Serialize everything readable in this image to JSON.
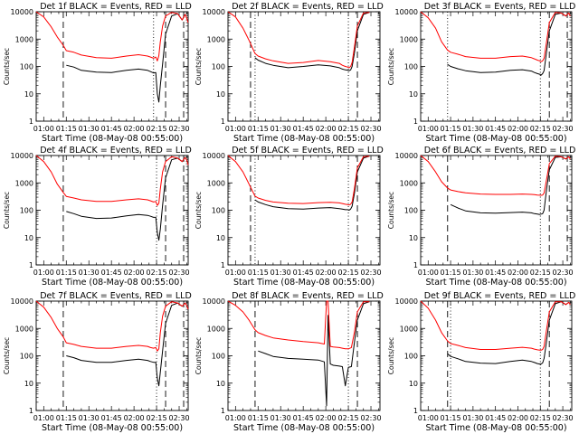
{
  "figure": {
    "xlabel": "Start Time (08-May-08 00:55:00)",
    "ylabel": "Counts/sec",
    "x_tick_labels": [
      "01:00",
      "01:15",
      "01:30",
      "01:45",
      "02:00",
      "02:15",
      "02:30"
    ],
    "y_tick_labels": [
      "1",
      "10",
      "100",
      "1000",
      "10000"
    ],
    "colors": {
      "events": "#000000",
      "lld": "#ff0000"
    }
  },
  "chart_data": [
    {
      "type": "line",
      "title": "Det 1f BLACK = Events, RED = LLD",
      "xlabel": "Start Time (08-May-08 00:55:00)",
      "ylabel": "Counts/sec",
      "y_scale": "log",
      "ylim": [
        1,
        10000
      ],
      "xlim_min": [
        0,
        101
      ],
      "dashed_lines_min": [
        18,
        86,
        98
      ],
      "dotted_lines_min": [
        78
      ],
      "x_min": [
        0,
        5,
        10,
        14,
        17.9,
        20,
        25,
        30,
        40,
        50,
        60,
        68,
        74,
        76,
        78,
        79.5,
        80.5,
        81.5,
        82.5,
        84,
        86,
        90,
        94,
        97,
        99,
        100,
        101
      ],
      "series": [
        {
          "name": "Events",
          "values": [
            null,
            null,
            null,
            null,
            null,
            110,
            95,
            72,
            62,
            60,
            72,
            80,
            72,
            65,
            58,
            60,
            10,
            5,
            20,
            120,
            1500,
            7000,
            8500,
            5000,
            8000,
            null,
            null
          ]
        },
        {
          "name": "LLD",
          "values": [
            10000,
            6500,
            2800,
            1200,
            600,
            380,
            330,
            260,
            210,
            200,
            240,
            270,
            240,
            220,
            200,
            220,
            160,
            250,
            800,
            3000,
            7000,
            9500,
            8500,
            5000,
            8000,
            6000,
            4000
          ]
        }
      ]
    },
    {
      "type": "line",
      "title": "Det 2f BLACK = Events, RED = LLD",
      "xlabel": "Start Time (08-May-08 00:55:00)",
      "ylabel": "Counts/sec",
      "y_scale": "log",
      "ylim": [
        1,
        10000
      ],
      "xlim_min": [
        0,
        101
      ],
      "dashed_lines_min": [
        15,
        86
      ],
      "dotted_lines_min": [
        18,
        80
      ],
      "x_min": [
        0,
        5,
        10,
        14,
        17.9,
        20,
        25,
        30,
        40,
        50,
        60,
        68,
        74,
        76,
        78,
        79.5,
        80.5,
        81.5,
        82.5,
        84,
        86,
        90,
        94,
        97,
        99,
        100,
        101
      ],
      "series": [
        {
          "name": "Events",
          "values": [
            null,
            null,
            null,
            null,
            210,
            170,
            130,
            110,
            90,
            100,
            115,
            105,
            90,
            80,
            75,
            73,
            70,
            75,
            100,
            300,
            2000,
            8000,
            9500,
            null,
            null,
            null,
            null
          ]
        },
        {
          "name": "LLD",
          "values": [
            10000,
            6500,
            2500,
            900,
            300,
            240,
            190,
            160,
            130,
            140,
            165,
            150,
            130,
            110,
            100,
            95,
            90,
            100,
            140,
            500,
            3000,
            9000,
            9500,
            null,
            null,
            null,
            null
          ]
        }
      ]
    },
    {
      "type": "line",
      "title": "Det 3f BLACK = Events, RED = LLD",
      "xlabel": "Start Time (08-May-08 00:55:00)",
      "ylabel": "Counts/sec",
      "y_scale": "log",
      "ylim": [
        1,
        10000
      ],
      "xlim_min": [
        0,
        101
      ],
      "dashed_lines_min": [
        86,
        98
      ],
      "dotted_lines_min": [
        18,
        80
      ],
      "x_min": [
        0,
        5,
        10,
        14,
        17.9,
        20,
        25,
        30,
        40,
        50,
        60,
        68,
        74,
        76,
        78,
        79.5,
        80.5,
        81.5,
        82.5,
        84,
        86,
        90,
        94,
        97,
        99,
        100,
        101
      ],
      "series": [
        {
          "name": "Events",
          "values": [
            null,
            null,
            null,
            null,
            120,
            100,
            82,
            70,
            60,
            62,
            72,
            76,
            68,
            60,
            55,
            52,
            48,
            55,
            70,
            300,
            2000,
            8000,
            9000,
            7000,
            9000,
            null,
            null
          ]
        },
        {
          "name": "LLD",
          "values": [
            10000,
            6000,
            2500,
            800,
            400,
            330,
            280,
            230,
            200,
            200,
            230,
            240,
            210,
            190,
            170,
            160,
            150,
            160,
            200,
            700,
            4000,
            9500,
            9000,
            7000,
            9000,
            7000,
            null
          ]
        }
      ]
    },
    {
      "type": "line",
      "title": "Det 4f BLACK = Events, RED = LLD",
      "xlabel": "Start Time (08-May-08 00:55:00)",
      "ylabel": "Counts/sec",
      "y_scale": "log",
      "ylim": [
        1,
        10000
      ],
      "xlim_min": [
        0,
        101
      ],
      "dashed_lines_min": [
        18,
        86,
        98
      ],
      "dotted_lines_min": [
        80
      ],
      "x_min": [
        0,
        5,
        10,
        14,
        17.9,
        20,
        25,
        30,
        40,
        50,
        60,
        68,
        74,
        76,
        78,
        79.5,
        80.5,
        81.5,
        82.5,
        84,
        86,
        90,
        94,
        97,
        99,
        100,
        101
      ],
      "series": [
        {
          "name": "Events",
          "values": [
            null,
            null,
            null,
            null,
            null,
            90,
            75,
            60,
            50,
            52,
            62,
            70,
            65,
            60,
            55,
            55,
            15,
            8,
            20,
            150,
            1500,
            7000,
            8000,
            6000,
            8500,
            null,
            null
          ]
        },
        {
          "name": "LLD",
          "values": [
            10000,
            6000,
            2500,
            900,
            450,
            320,
            280,
            240,
            210,
            210,
            240,
            260,
            240,
            220,
            200,
            210,
            150,
            180,
            600,
            2500,
            6000,
            9000,
            8000,
            6000,
            8500,
            7000,
            4500
          ]
        }
      ]
    },
    {
      "type": "line",
      "title": "Det 5f BLACK = Events, RED = LLD",
      "xlabel": "Start Time (08-May-08 00:55:00)",
      "ylabel": "Counts/sec",
      "y_scale": "log",
      "ylim": [
        1,
        10000
      ],
      "xlim_min": [
        0,
        101
      ],
      "dashed_lines_min": [
        15,
        86
      ],
      "dotted_lines_min": [
        18,
        80
      ],
      "x_min": [
        0,
        5,
        10,
        14,
        17.9,
        20,
        25,
        30,
        40,
        50,
        60,
        68,
        74,
        76,
        78,
        79.5,
        80.5,
        81.5,
        82.5,
        84,
        86,
        90,
        94,
        97,
        99,
        100,
        101
      ],
      "series": [
        {
          "name": "Events",
          "values": [
            null,
            null,
            null,
            null,
            240,
            200,
            160,
            135,
            115,
            110,
            120,
            125,
            115,
            110,
            105,
            105,
            100,
            110,
            140,
            400,
            2500,
            8000,
            9500,
            null,
            null,
            null,
            null
          ]
        },
        {
          "name": "LLD",
          "values": [
            10000,
            6000,
            2500,
            900,
            330,
            280,
            230,
            200,
            180,
            175,
            190,
            195,
            185,
            175,
            165,
            160,
            155,
            165,
            200,
            600,
            3500,
            9000,
            9500,
            null,
            null,
            null,
            null
          ]
        }
      ]
    },
    {
      "type": "line",
      "title": "Det 6f BLACK = Events, RED = LLD",
      "xlabel": "Start Time (08-May-08 00:55:00)",
      "ylabel": "Counts/sec",
      "y_scale": "log",
      "ylim": [
        1,
        10000
      ],
      "xlim_min": [
        0,
        101
      ],
      "dashed_lines_min": [
        18,
        86,
        98
      ],
      "dotted_lines_min": [
        80
      ],
      "x_min": [
        0,
        5,
        10,
        14,
        17.9,
        20,
        25,
        30,
        40,
        50,
        60,
        68,
        74,
        76,
        78,
        79.5,
        80.5,
        81.5,
        82.5,
        84,
        86,
        90,
        94,
        97,
        99,
        100,
        101
      ],
      "series": [
        {
          "name": "Events",
          "values": [
            null,
            null,
            null,
            null,
            null,
            160,
            120,
            95,
            80,
            78,
            82,
            85,
            80,
            75,
            72,
            70,
            72,
            75,
            100,
            500,
            3000,
            8500,
            9000,
            7500,
            9000,
            null,
            null
          ]
        },
        {
          "name": "LLD",
          "values": [
            10000,
            6000,
            2500,
            1100,
            650,
            550,
            480,
            430,
            390,
            380,
            380,
            390,
            380,
            370,
            360,
            355,
            350,
            360,
            420,
            1200,
            5000,
            9500,
            9000,
            7500,
            9000,
            7500,
            null
          ]
        }
      ]
    },
    {
      "type": "line",
      "title": "Det 7f BLACK = Events, RED = LLD",
      "xlabel": "Start Time (08-May-08 00:55:00)",
      "ylabel": "Counts/sec",
      "y_scale": "log",
      "ylim": [
        1,
        10000
      ],
      "xlim_min": [
        0,
        101
      ],
      "dashed_lines_min": [
        18,
        86,
        98
      ],
      "dotted_lines_min": [
        80
      ],
      "x_min": [
        0,
        5,
        10,
        14,
        17.9,
        20,
        25,
        30,
        40,
        50,
        60,
        68,
        74,
        76,
        78,
        79.5,
        80.5,
        81.5,
        82.5,
        84,
        86,
        90,
        94,
        97,
        99,
        100,
        101
      ],
      "series": [
        {
          "name": "Events",
          "values": [
            null,
            null,
            null,
            null,
            null,
            100,
            85,
            68,
            58,
            58,
            68,
            75,
            68,
            62,
            58,
            58,
            15,
            8,
            25,
            150,
            1500,
            7000,
            8500,
            6500,
            8500,
            null,
            null
          ]
        },
        {
          "name": "LLD",
          "values": [
            10000,
            6000,
            2500,
            1000,
            500,
            300,
            260,
            220,
            190,
            190,
            220,
            240,
            220,
            200,
            190,
            200,
            150,
            180,
            700,
            2800,
            6500,
            9500,
            8500,
            6500,
            8500,
            7000,
            5000
          ]
        }
      ]
    },
    {
      "type": "line",
      "title": "Det 8f BLACK = Events, RED = LLD",
      "xlabel": "Start Time (08-May-08 00:55:00)",
      "ylabel": "Counts/sec",
      "y_scale": "log",
      "ylim": [
        1,
        10000
      ],
      "xlim_min": [
        0,
        101
      ],
      "dashed_lines_min": [
        18,
        86
      ],
      "dotted_lines_min": [
        80
      ],
      "x_min": [
        0,
        5,
        10,
        14,
        17.9,
        20,
        25,
        30,
        40,
        50,
        60,
        64,
        65.5,
        66.5,
        68,
        70,
        74,
        76,
        78,
        80,
        82,
        84,
        86,
        90,
        94,
        97,
        101
      ],
      "series": [
        {
          "name": "Events",
          "values": [
            null,
            null,
            null,
            null,
            null,
            150,
            120,
            95,
            80,
            75,
            70,
            60,
            1.5,
            3000,
            50,
            45,
            42,
            40,
            8,
            38,
            40,
            300,
            2000,
            8000,
            9500,
            null,
            null
          ]
        },
        {
          "name": "LLD",
          "values": [
            10000,
            7000,
            4000,
            2000,
            900,
            700,
            550,
            450,
            380,
            330,
            300,
            270,
            10000,
            10000,
            220,
            210,
            200,
            190,
            180,
            180,
            200,
            700,
            4000,
            9500,
            9500,
            null,
            null
          ]
        }
      ]
    },
    {
      "type": "line",
      "title": "Det 9f BLACK = Events, RED = LLD",
      "xlabel": "Start Time (08-May-08 00:55:00)",
      "ylabel": "Counts/sec",
      "y_scale": "log",
      "ylim": [
        1,
        10000
      ],
      "xlim_min": [
        0,
        101
      ],
      "dashed_lines_min": [
        18,
        86
      ],
      "dotted_lines_min": [
        20,
        80
      ],
      "x_min": [
        0,
        5,
        10,
        14,
        17.9,
        20,
        25,
        30,
        40,
        50,
        60,
        68,
        74,
        76,
        78,
        79.5,
        80.5,
        81.5,
        82.5,
        84,
        86,
        90,
        94,
        97,
        99,
        100,
        101
      ],
      "series": [
        {
          "name": "Events",
          "values": [
            null,
            null,
            null,
            null,
            120,
            95,
            78,
            62,
            54,
            52,
            62,
            70,
            62,
            57,
            52,
            50,
            50,
            55,
            80,
            300,
            2000,
            8000,
            9500,
            7500,
            9000,
            null,
            null
          ]
        },
        {
          "name": "LLD",
          "values": [
            10000,
            5500,
            2000,
            700,
            350,
            280,
            240,
            200,
            170,
            170,
            190,
            205,
            190,
            175,
            165,
            160,
            160,
            170,
            220,
            800,
            4000,
            9500,
            9500,
            7500,
            9000,
            7500,
            null
          ]
        }
      ]
    }
  ]
}
